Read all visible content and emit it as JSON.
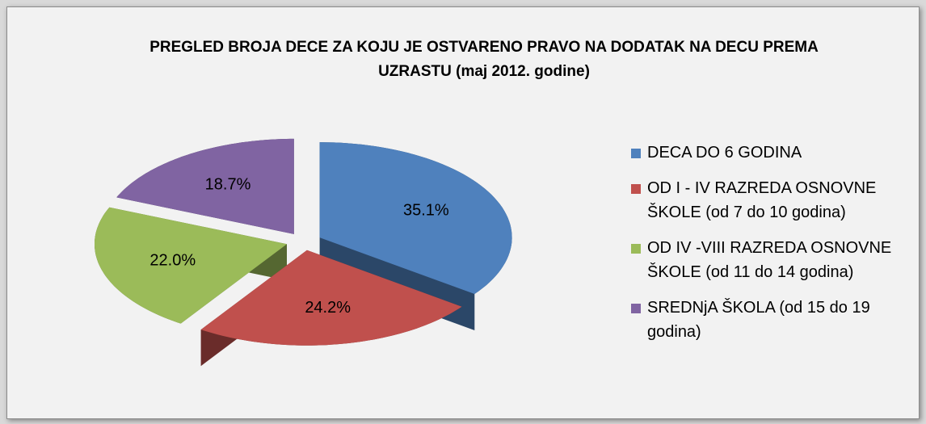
{
  "chart_data": {
    "type": "pie",
    "title": "PREGLED BROJA DECE ZA KOJU JE OSTVARENO PRAVO NA DODATAK NA DECU PREMA UZRASTU (maj 2012. godine)",
    "categories": [
      "DECA DO 6 GODINA",
      "OD I - IV RAZREDA OSNOVNE ŠKOLE (od 7 do 10 godina)",
      "OD IV -VIII RAZREDA OSNOVNE ŠKOLE (od 11 do 14 godina)",
      "SREDNjA ŠKOLA (od 15 do 19 godina)"
    ],
    "values": [
      35.1,
      24.2,
      22.0,
      18.7
    ],
    "value_labels": [
      "35.1%",
      "24.2%",
      "22.0%",
      "18.7%"
    ],
    "colors": [
      "#4f81bd",
      "#c0504d",
      "#9bbb59",
      "#8064a2"
    ],
    "legend": "right"
  }
}
